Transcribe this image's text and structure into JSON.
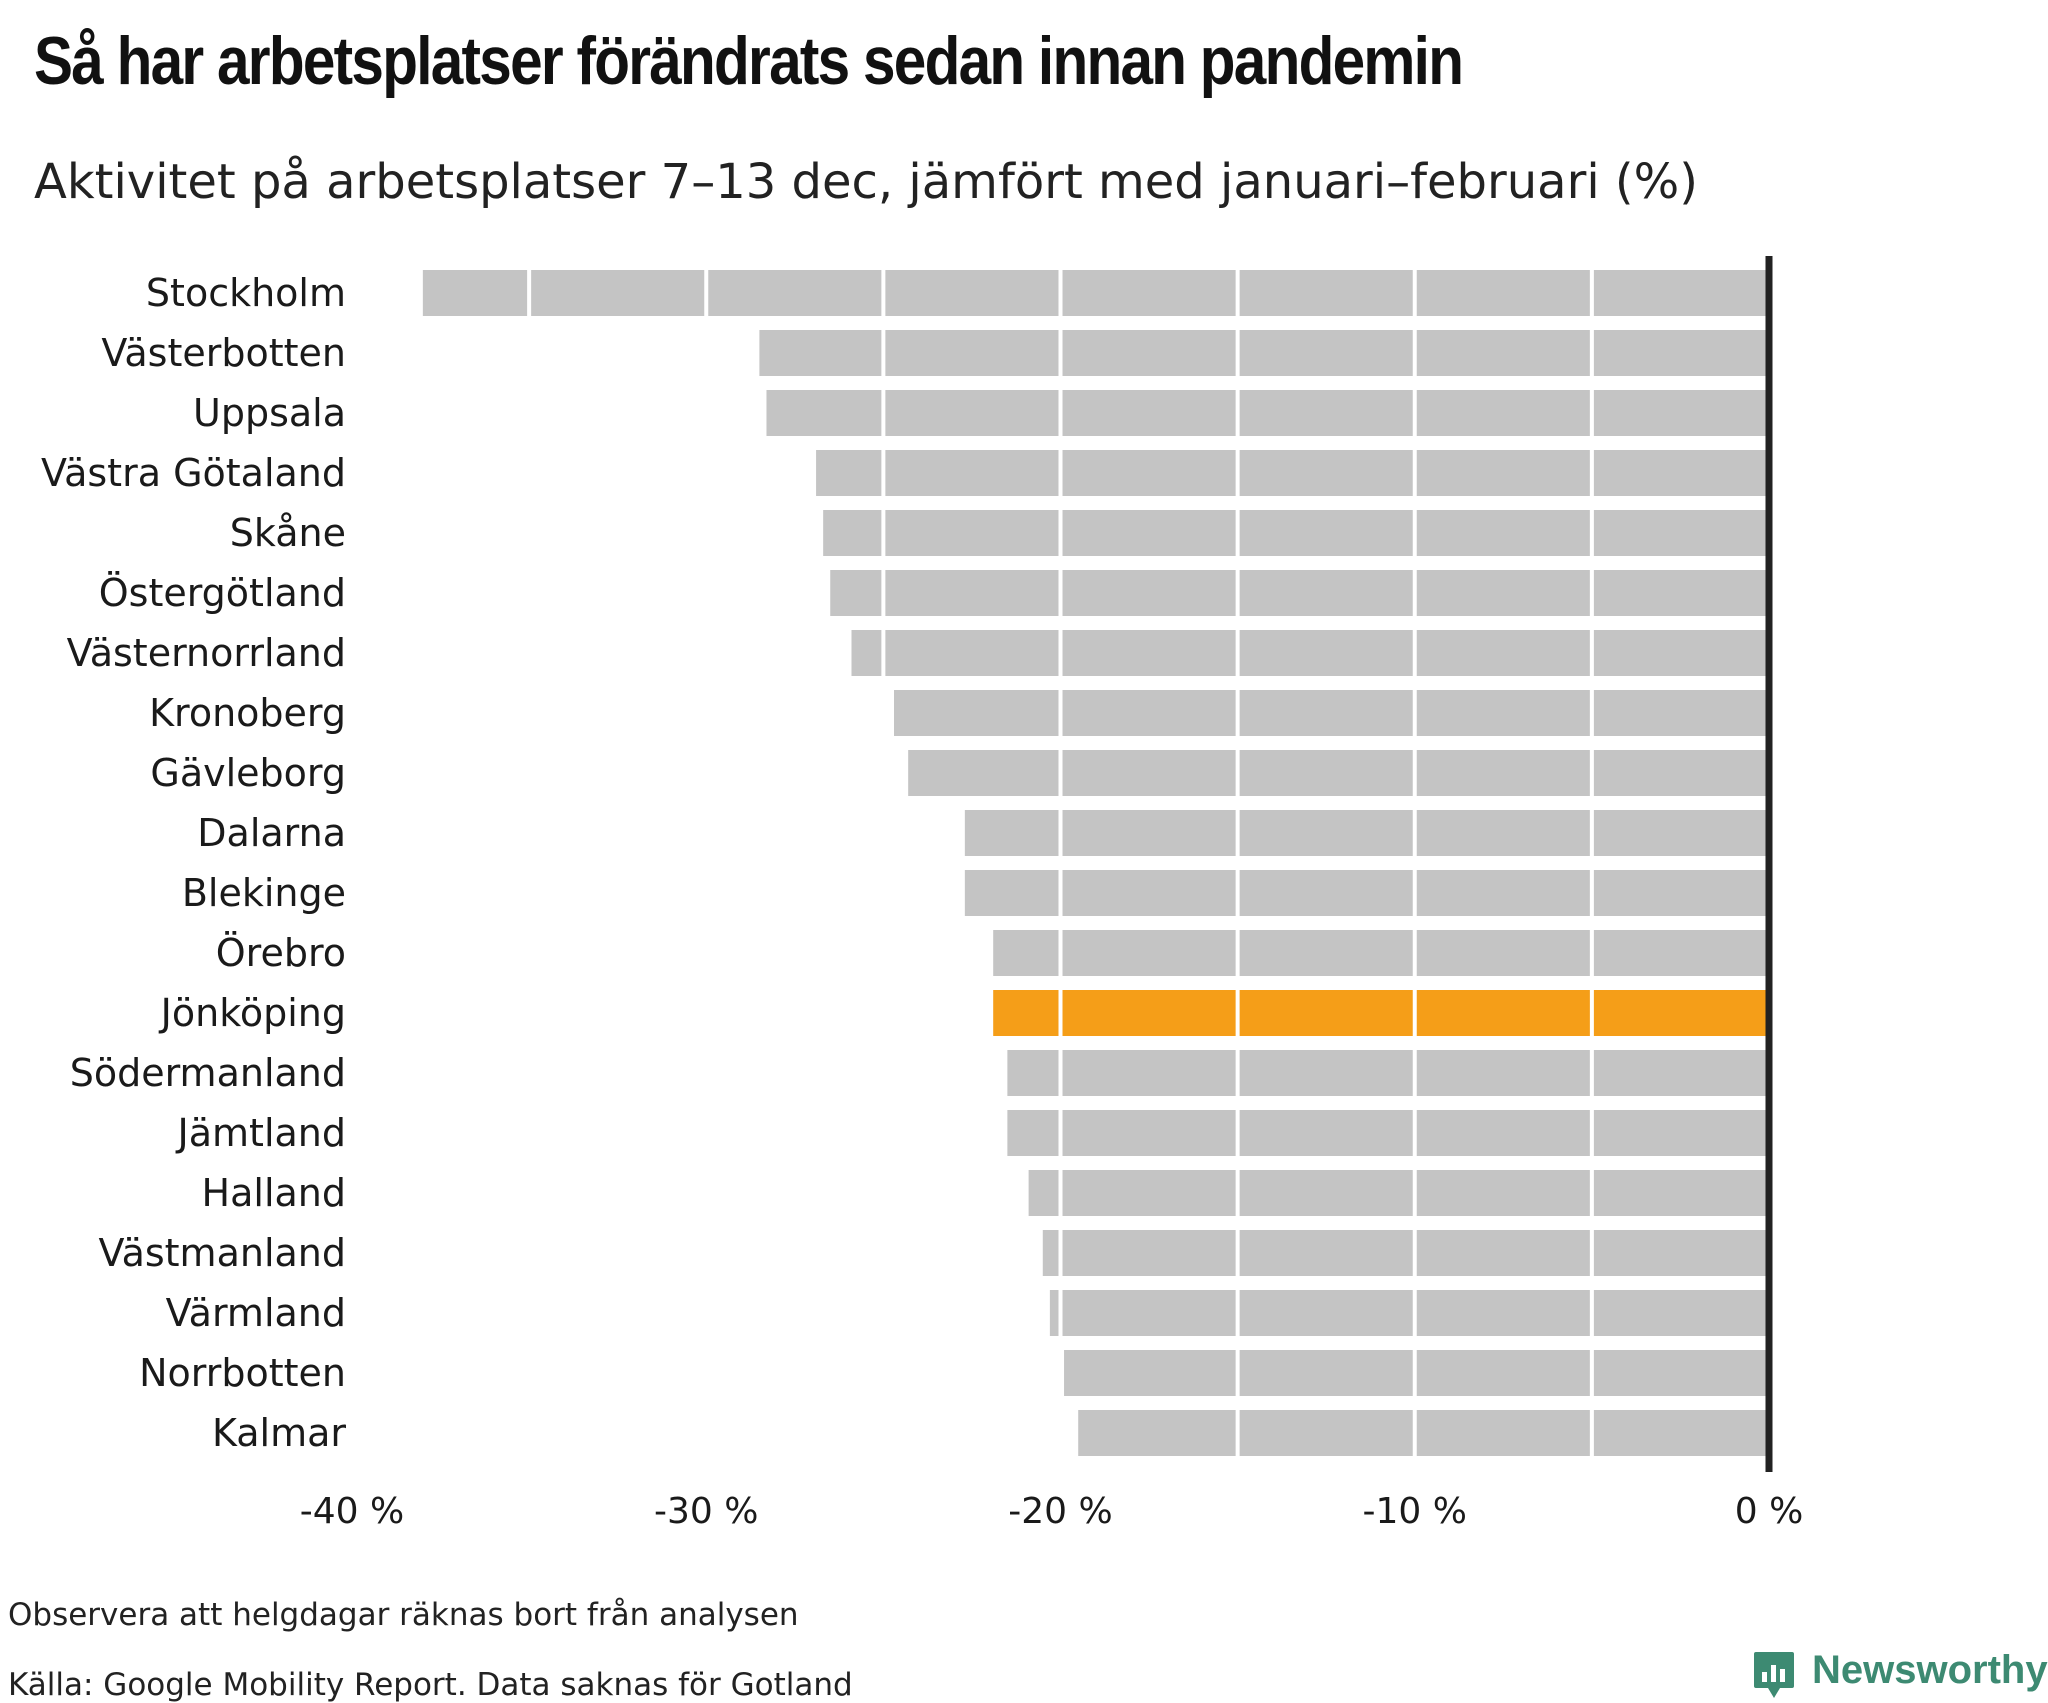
{
  "title": "Så har arbetsplatser förändrats sedan innan pandemin",
  "subtitle": "Aktivitet på arbetsplatser 7–13 dec, jämfört med januari–februari (%)",
  "note": "Observera att helgdagar räknas bort från analysen",
  "source": "Källa: Google Mobility Report. Data saknas för Gotland",
  "brand": "Newsworthy",
  "colors": {
    "bar": "#c4c4c4",
    "highlight": "#f59e18",
    "zero_line": "#222222",
    "gridline": "#ffffff",
    "brand": "#3d8a72"
  },
  "chart_data": {
    "type": "bar",
    "orientation": "horizontal",
    "categories": [
      "Stockholm",
      "Västerbotten",
      "Uppsala",
      "Västra Götaland",
      "Skåne",
      "Östergötland",
      "Västernorrland",
      "Kronoberg",
      "Gävleborg",
      "Dalarna",
      "Blekinge",
      "Örebro",
      "Jönköping",
      "Södermanland",
      "Jämtland",
      "Halland",
      "Västmanland",
      "Värmland",
      "Norrbotten",
      "Kalmar"
    ],
    "values": [
      -38,
      -28.5,
      -28.3,
      -26.9,
      -26.7,
      -26.5,
      -25.9,
      -24.7,
      -24.3,
      -22.7,
      -22.7,
      -21.9,
      -21.9,
      -21.5,
      -21.5,
      -20.9,
      -20.5,
      -20.3,
      -19.9,
      -19.5
    ],
    "highlight": "Jönköping",
    "xlim": [
      -40,
      0
    ],
    "xticks": [
      -40,
      -30,
      -20,
      -10,
      0
    ],
    "xtick_labels": [
      "-40 %",
      "-30 %",
      "-20 %",
      "-10 %",
      "0 %"
    ],
    "grid": true,
    "xlabel": "",
    "ylabel": ""
  }
}
